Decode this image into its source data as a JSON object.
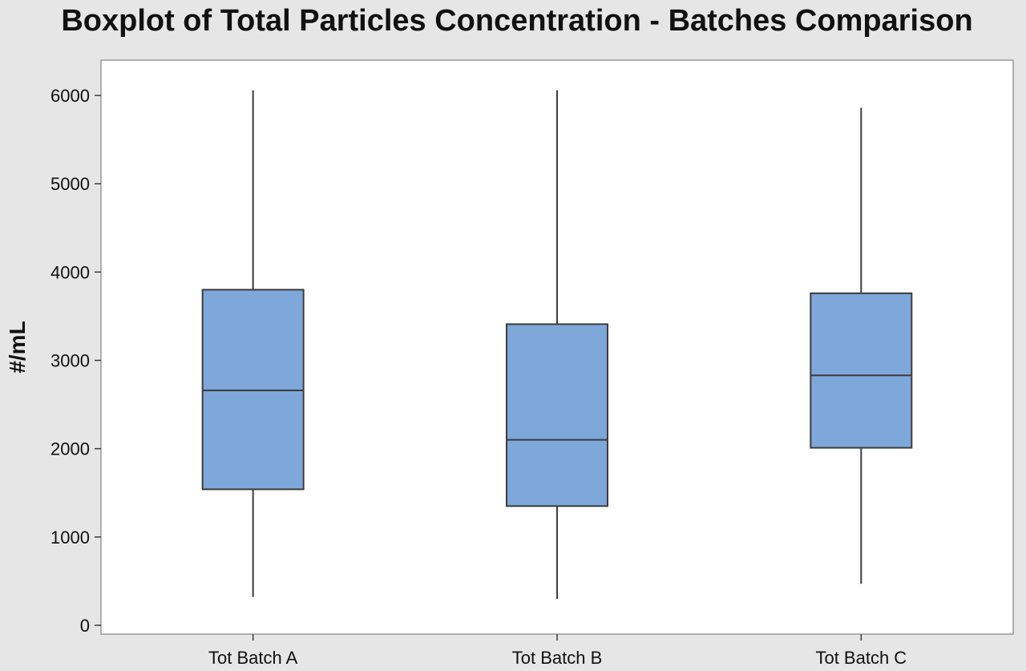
{
  "chart_data": {
    "type": "boxplot",
    "title": "Boxplot of Total Particles Concentration - Batches Comparison",
    "xlabel": "",
    "ylabel": "#/mL",
    "ylim": [
      -100,
      6400
    ],
    "yticks": [
      0,
      1000,
      2000,
      3000,
      4000,
      5000,
      6000
    ],
    "yticklabels": [
      "0",
      "1000",
      "2000",
      "3000",
      "4000",
      "5000",
      "6000"
    ],
    "grid": false,
    "legend": "none",
    "categories": [
      "Tot Batch A",
      "Tot Batch B",
      "Tot Batch C"
    ],
    "boxes": [
      {
        "category": "Tot Batch A",
        "min": 320,
        "q1": 1540,
        "median": 2660,
        "q3": 3800,
        "max": 6060
      },
      {
        "category": "Tot Batch B",
        "min": 300,
        "q1": 1350,
        "median": 2100,
        "q3": 3410,
        "max": 6060
      },
      {
        "category": "Tot Batch C",
        "min": 470,
        "q1": 2010,
        "median": 2830,
        "q3": 3760,
        "max": 5860
      }
    ],
    "colors": {
      "box_fill": "#7ea7da",
      "stroke": "#3c3c3c",
      "plot_bg": "#ffffff",
      "page_bg": "#e6e6e6"
    }
  }
}
